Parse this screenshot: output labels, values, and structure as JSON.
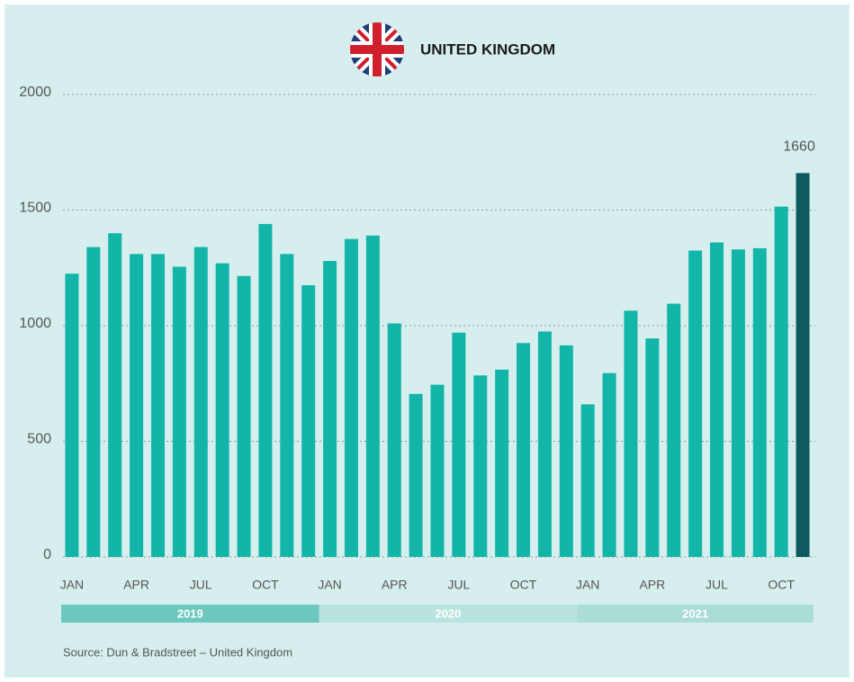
{
  "chart_data": {
    "type": "bar",
    "title": "UNITED KINGDOM",
    "source": "Source: Dun & Bradstreet – United Kingdom",
    "categories": [
      "JAN",
      null,
      null,
      "APR",
      null,
      null,
      "JUL",
      null,
      null,
      "OCT",
      null,
      null,
      "JAN",
      null,
      null,
      "APR",
      null,
      null,
      "JUL",
      null,
      null,
      "OCT",
      null,
      null,
      "JAN",
      null,
      null,
      "APR",
      null,
      null,
      "JUL",
      null,
      null,
      "OCT",
      null
    ],
    "values": [
      1225,
      1340,
      1400,
      1310,
      1310,
      1255,
      1340,
      1270,
      1215,
      1440,
      1310,
      1175,
      1280,
      1375,
      1390,
      1010,
      705,
      745,
      970,
      785,
      810,
      925,
      975,
      915,
      660,
      795,
      1065,
      945,
      1095,
      1325,
      1360,
      1330,
      1335,
      1515,
      1660
    ],
    "value_labels": [
      null,
      null,
      null,
      null,
      null,
      null,
      null,
      null,
      null,
      null,
      null,
      null,
      null,
      null,
      null,
      null,
      null,
      null,
      null,
      null,
      null,
      null,
      null,
      null,
      null,
      null,
      null,
      null,
      null,
      null,
      null,
      null,
      null,
      null,
      "1660"
    ],
    "colors": [
      "#12b5a8",
      "#12b5a8",
      "#12b5a8",
      "#12b5a8",
      "#12b5a8",
      "#12b5a8",
      "#12b5a8",
      "#12b5a8",
      "#12b5a8",
      "#12b5a8",
      "#12b5a8",
      "#12b5a8",
      "#12b5a8",
      "#12b5a8",
      "#12b5a8",
      "#12b5a8",
      "#12b5a8",
      "#12b5a8",
      "#12b5a8",
      "#12b5a8",
      "#12b5a8",
      "#12b5a8",
      "#12b5a8",
      "#12b5a8",
      "#12b5a8",
      "#12b5a8",
      "#12b5a8",
      "#12b5a8",
      "#12b5a8",
      "#12b5a8",
      "#12b5a8",
      "#12b5a8",
      "#12b5a8",
      "#12b5a8",
      "#0d5a5f"
    ],
    "years": [
      "2019",
      "2020",
      "2021"
    ],
    "year_colors": [
      "#6cc8bf",
      "#b9e3de",
      "#abdcd6"
    ],
    "ylim": [
      0,
      2000
    ],
    "yticks": [
      0,
      500,
      1000,
      1500,
      2000
    ],
    "grid": true
  }
}
